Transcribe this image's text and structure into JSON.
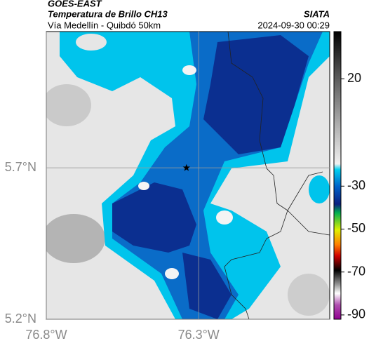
{
  "header": {
    "satellite": "GOES-EAST",
    "product": "Temperatura de Brillo CH13",
    "source": "SIATA",
    "subtitle": "Vía Medellín - Quibdó 50km",
    "timestamp": "2024-09-30 00:29"
  },
  "map": {
    "xlim": [
      -76.8,
      -75.87
    ],
    "ylim": [
      5.2,
      6.15
    ],
    "xticks": [
      {
        "value": -76.8,
        "label": "76.8°W"
      },
      {
        "value": -76.3,
        "label": "76.3°W"
      }
    ],
    "yticks": [
      {
        "value": 5.2,
        "label": "5.2°N"
      },
      {
        "value": 5.7,
        "label": "5.7°N"
      }
    ],
    "marker": {
      "lon": -76.34,
      "lat": 5.7
    }
  },
  "colorbar": {
    "lim": [
      -92,
      42
    ],
    "ticks": [
      20,
      -30,
      -50,
      -70,
      -90
    ]
  }
}
